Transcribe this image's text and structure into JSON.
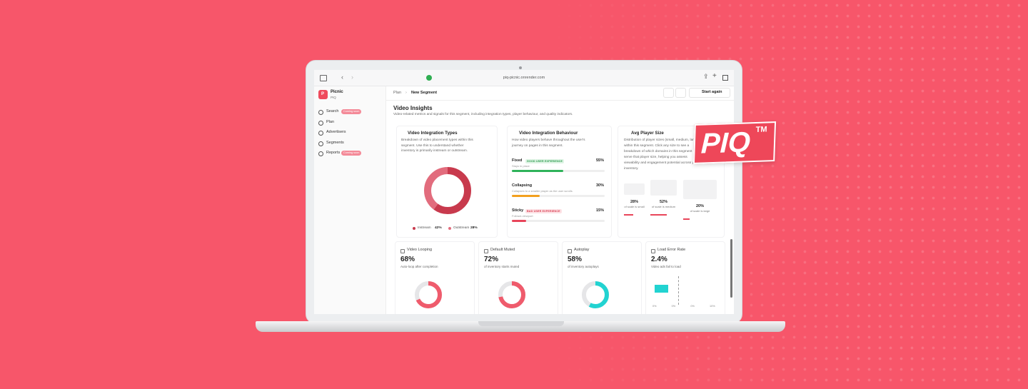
{
  "browser": {
    "url": "piq-picnic.onrender.com"
  },
  "sidebar": {
    "logo": "P",
    "org": "Picnic",
    "product": "PIQ",
    "menu": [
      {
        "label": "Search",
        "badge": "Coming soon"
      },
      {
        "label": "Plan"
      },
      {
        "label": "Advertisers"
      },
      {
        "label": "Segments"
      },
      {
        "label": "Reports",
        "badge": "Coming soon"
      }
    ]
  },
  "header": {
    "breadcrumb": [
      "Plan",
      "New Segment"
    ],
    "action": "Start again"
  },
  "page": {
    "title": "Video Insights",
    "subtitle": "Video-related metrics and signals for this segment, including integration types, player behaviour, and quality indicators."
  },
  "integration_types": {
    "title": "Video Integration Types",
    "description": [
      "Breakdown of video placement types within this",
      "segment. Use this to understand whether",
      "inventory is primarily instream or outstream."
    ],
    "legend": [
      {
        "label": "Instream",
        "value": "42%"
      },
      {
        "label": "Outstream",
        "value": "28%"
      }
    ]
  },
  "integration_behaviour": {
    "title": "Video Integration Behaviour",
    "description": [
      "How video players behave throughout the user's",
      "journey on pages in this segment."
    ],
    "items": [
      {
        "label": "Fixed",
        "badge": "GOOD USER EXPERIENCE",
        "value": "55%",
        "note": "Stays in place"
      },
      {
        "label": "Collapsing",
        "value": "30%",
        "note": "Collapses to a smaller player as the user scrolls"
      },
      {
        "label": "Sticky",
        "badge": "BAD USER EXPERIENCE",
        "value": "15%",
        "note": "Follows viewport"
      }
    ]
  },
  "player_size": {
    "title": "Avg Player Size",
    "description": [
      "Distribution of player sizes (small, medium, large)",
      "within this segment. Click any size to see a",
      "breakdown of which domains in this segment",
      "serve that player size, helping you assess",
      "viewability and engagement potential across your",
      "inventory."
    ],
    "sizes": [
      {
        "value": "28%",
        "caption": "of scale is small"
      },
      {
        "value": "52%",
        "caption": "of scale is medium"
      },
      {
        "value": "20%",
        "caption": "of scale is large"
      }
    ]
  },
  "metrics": [
    {
      "title": "Video Looping",
      "value": "68%",
      "note": "Auto-loop after completion"
    },
    {
      "title": "Default Muted",
      "value": "72%",
      "note": "of inventory starts muted"
    },
    {
      "title": "Autoplay",
      "value": "58%",
      "note": "of inventory autoplays"
    },
    {
      "title": "Load Error Rate",
      "value": "2.4%",
      "note": "Video ads fail to load",
      "axis": [
        "0%",
        "0%",
        "0%",
        "10%"
      ]
    }
  ],
  "brand_badge": {
    "text": "PIQ",
    "mark": "TM"
  }
}
